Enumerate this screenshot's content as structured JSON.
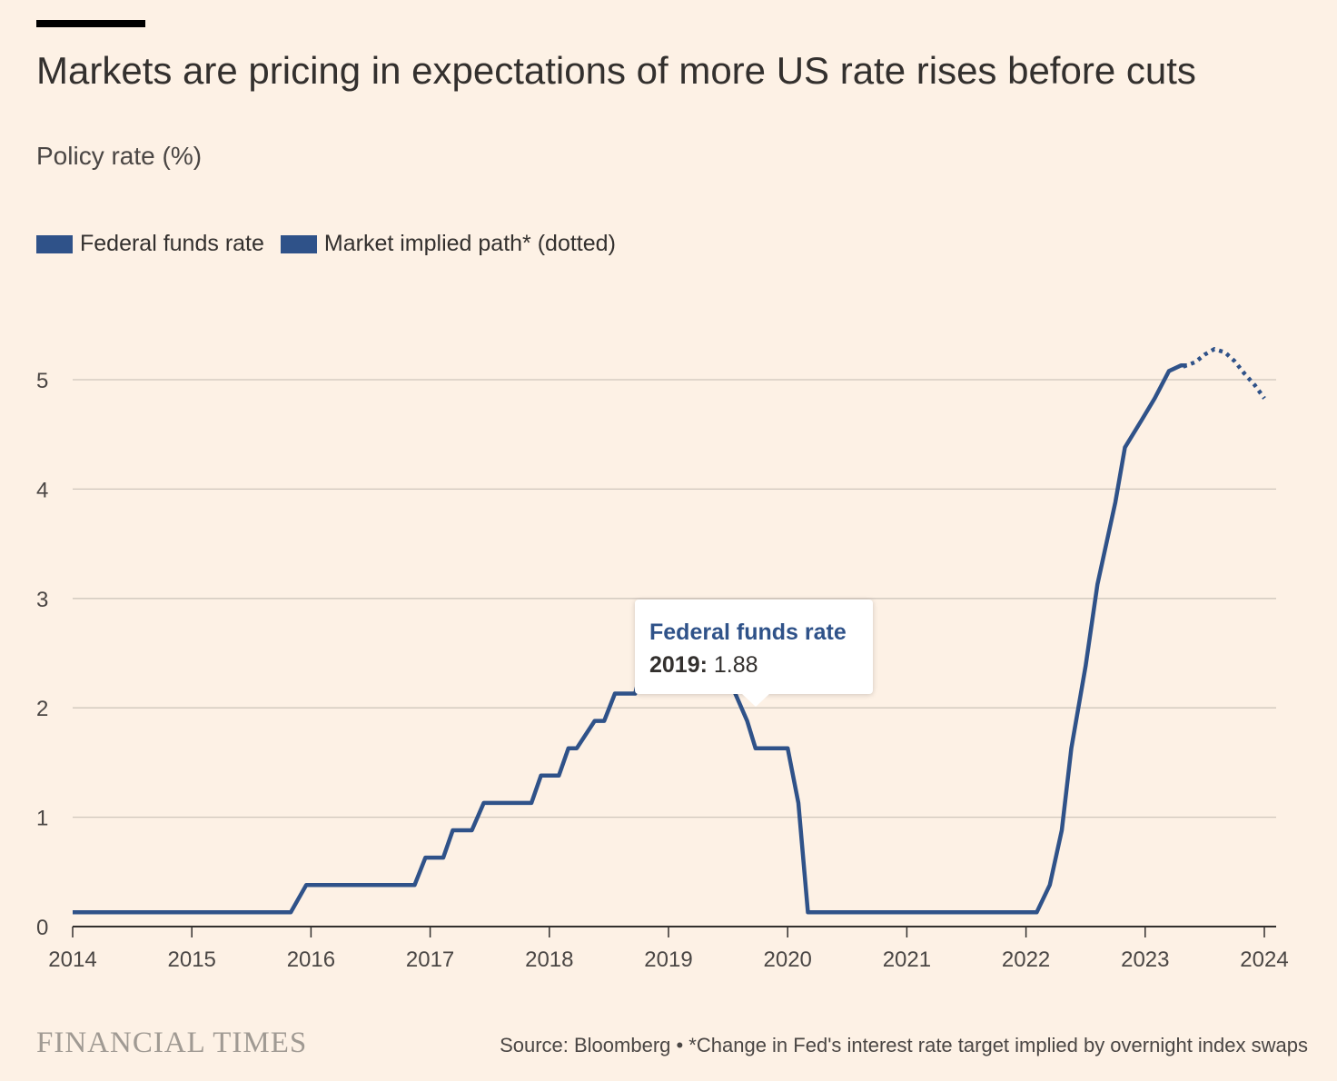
{
  "page": {
    "title": "Markets are pricing in expectations of more US rate rises before cuts",
    "subtitle": "Policy rate (%)",
    "source": "Source: Bloomberg • *Change in Fed's interest rate target implied by overnight index swaps",
    "brand": "FINANCIAL TIMES"
  },
  "legend": {
    "items": [
      {
        "label": "Federal funds rate",
        "color": "#2f5289"
      },
      {
        "label": "Market implied path* (dotted)",
        "color": "#2f5289"
      }
    ]
  },
  "tooltip": {
    "title": "Federal funds rate",
    "year_label": "2019:",
    "value": "1.88"
  },
  "colors": {
    "series": "#2f5289",
    "background": "#fdf1e5",
    "grid": "#cfc6bc",
    "axis": "#33302e"
  },
  "chart_data": {
    "type": "line",
    "title": "Markets are pricing in expectations of more US rate rises before cuts",
    "ylabel": "Policy rate (%)",
    "xlabel": "",
    "xlim": [
      2014.0,
      2024.0
    ],
    "ylim": [
      0,
      5.5
    ],
    "x_ticks": [
      2014,
      2015,
      2016,
      2017,
      2018,
      2019,
      2020,
      2021,
      2022,
      2023,
      2024
    ],
    "y_ticks": [
      0,
      1,
      2,
      3,
      4,
      5
    ],
    "grid": true,
    "legend_position": "top-left",
    "series": [
      {
        "name": "Federal funds rate",
        "style": "solid",
        "x": [
          2014.0,
          2015.0,
          2015.83,
          2015.96,
          2016.0,
          2016.5,
          2016.87,
          2016.96,
          2017.11,
          2017.19,
          2017.35,
          2017.45,
          2017.5,
          2017.85,
          2017.93,
          2018.08,
          2018.16,
          2018.23,
          2018.38,
          2018.46,
          2018.55,
          2018.72,
          2018.78,
          2018.92,
          2019.0,
          2019.3,
          2019.45,
          2019.56,
          2019.66,
          2019.73,
          2019.83,
          2020.0,
          2020.09,
          2020.17,
          2020.2,
          2020.5,
          2021.0,
          2021.5,
          2022.09,
          2022.2,
          2022.3,
          2022.38,
          2022.5,
          2022.6,
          2022.75,
          2022.83,
          2022.97,
          2023.08,
          2023.2,
          2023.3,
          2023.35
        ],
        "y": [
          0.13,
          0.13,
          0.13,
          0.38,
          0.38,
          0.38,
          0.38,
          0.63,
          0.63,
          0.88,
          0.88,
          1.13,
          1.13,
          1.13,
          1.38,
          1.38,
          1.63,
          1.63,
          1.88,
          1.88,
          2.13,
          2.13,
          2.38,
          2.38,
          2.38,
          2.38,
          2.38,
          2.13,
          1.88,
          1.63,
          1.63,
          1.63,
          1.13,
          0.13,
          0.13,
          0.13,
          0.13,
          0.13,
          0.13,
          0.38,
          0.88,
          1.63,
          2.38,
          3.13,
          3.88,
          4.38,
          4.63,
          4.83,
          5.08,
          5.13,
          5.13
        ]
      },
      {
        "name": "Market implied path* (dotted)",
        "style": "dotted",
        "x": [
          2023.32,
          2023.42,
          2023.5,
          2023.58,
          2023.67,
          2023.75,
          2023.83,
          2023.92,
          2024.0
        ],
        "y": [
          5.12,
          5.16,
          5.23,
          5.28,
          5.25,
          5.17,
          5.06,
          4.95,
          4.83
        ]
      }
    ]
  }
}
